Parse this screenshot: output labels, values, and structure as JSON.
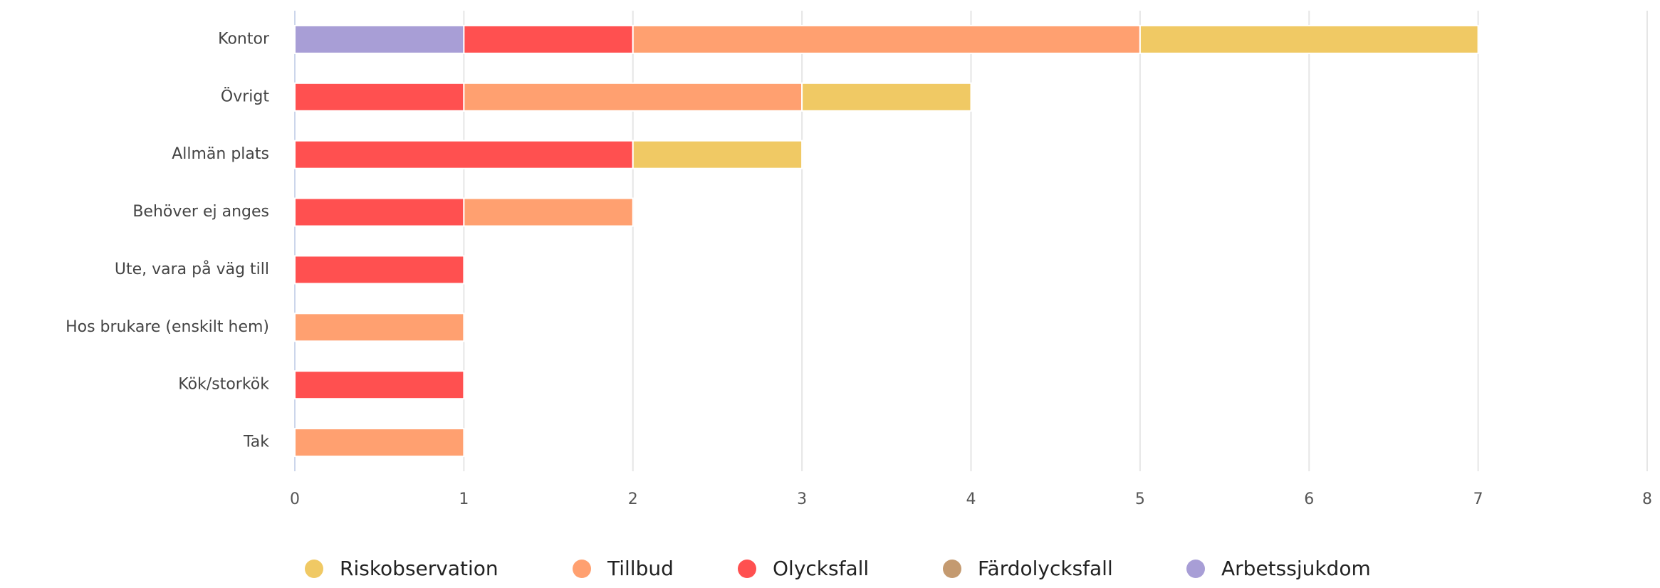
{
  "chart_data": {
    "type": "stacked-bar-horizontal",
    "categories": [
      "Kontor",
      "Övrigt",
      "Allmän plats",
      "Behöver ej anges",
      "Ute, vara på väg till",
      "Hos brukare (enskilt hem)",
      "Kök/storkök",
      "Tak"
    ],
    "series": [
      {
        "name": "Riskobservation",
        "color": "#f0c964",
        "values": [
          2,
          1,
          1,
          0,
          0,
          0,
          0,
          0
        ]
      },
      {
        "name": "Tillbud",
        "color": "#ffa070",
        "values": [
          3,
          2,
          0,
          1,
          0,
          1,
          0,
          1
        ]
      },
      {
        "name": "Olycksfall",
        "color": "#ff5050",
        "values": [
          1,
          1,
          2,
          1,
          1,
          0,
          1,
          0
        ]
      },
      {
        "name": "Färdolycksfall",
        "color": "#c49a70",
        "values": [
          0,
          0,
          0,
          0,
          0,
          0,
          0,
          0
        ]
      },
      {
        "name": "Arbetssjukdom",
        "color": "#a89ed6",
        "values": [
          1,
          0,
          0,
          0,
          0,
          0,
          0,
          0
        ]
      }
    ],
    "xlim": [
      0,
      8
    ],
    "xticks": [
      0,
      1,
      2,
      3,
      4,
      5,
      6,
      7,
      8
    ],
    "grid": true,
    "legend": "bottom"
  }
}
